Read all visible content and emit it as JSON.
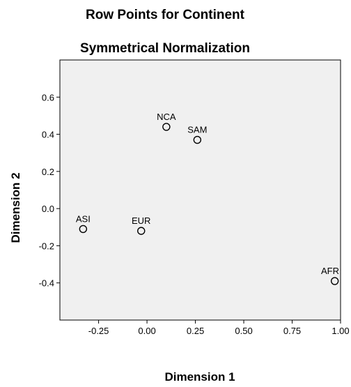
{
  "chart_data": {
    "type": "scatter",
    "title": "Row Points for Continent",
    "subtitle": "Symmetrical Normalization",
    "xlabel": "Dimension 1",
    "ylabel": "Dimension 2",
    "xlim": [
      -0.45,
      1.0
    ],
    "ylim": [
      -0.6,
      0.8
    ],
    "xticks": [
      -0.25,
      0.0,
      0.25,
      0.5,
      0.75,
      1.0
    ],
    "xtick_labels": [
      "-0.25",
      "0.00",
      "0.25",
      "0.50",
      "0.75",
      "1.00"
    ],
    "yticks": [
      -0.4,
      -0.2,
      0.0,
      0.2,
      0.4,
      0.6
    ],
    "ytick_labels": [
      "-0.4",
      "-0.2",
      "0.0",
      "0.2",
      "0.4",
      "0.6"
    ],
    "grid": false,
    "background": "#f0f0f0",
    "marker_color": "#000000",
    "points": [
      {
        "label": "NCA",
        "x": 0.1,
        "y": 0.44
      },
      {
        "label": "SAM",
        "x": 0.26,
        "y": 0.37
      },
      {
        "label": "ASI",
        "x": -0.33,
        "y": -0.11
      },
      {
        "label": "EUR",
        "x": -0.03,
        "y": -0.12
      },
      {
        "label": "AFR",
        "x": 0.97,
        "y": -0.39
      }
    ]
  }
}
